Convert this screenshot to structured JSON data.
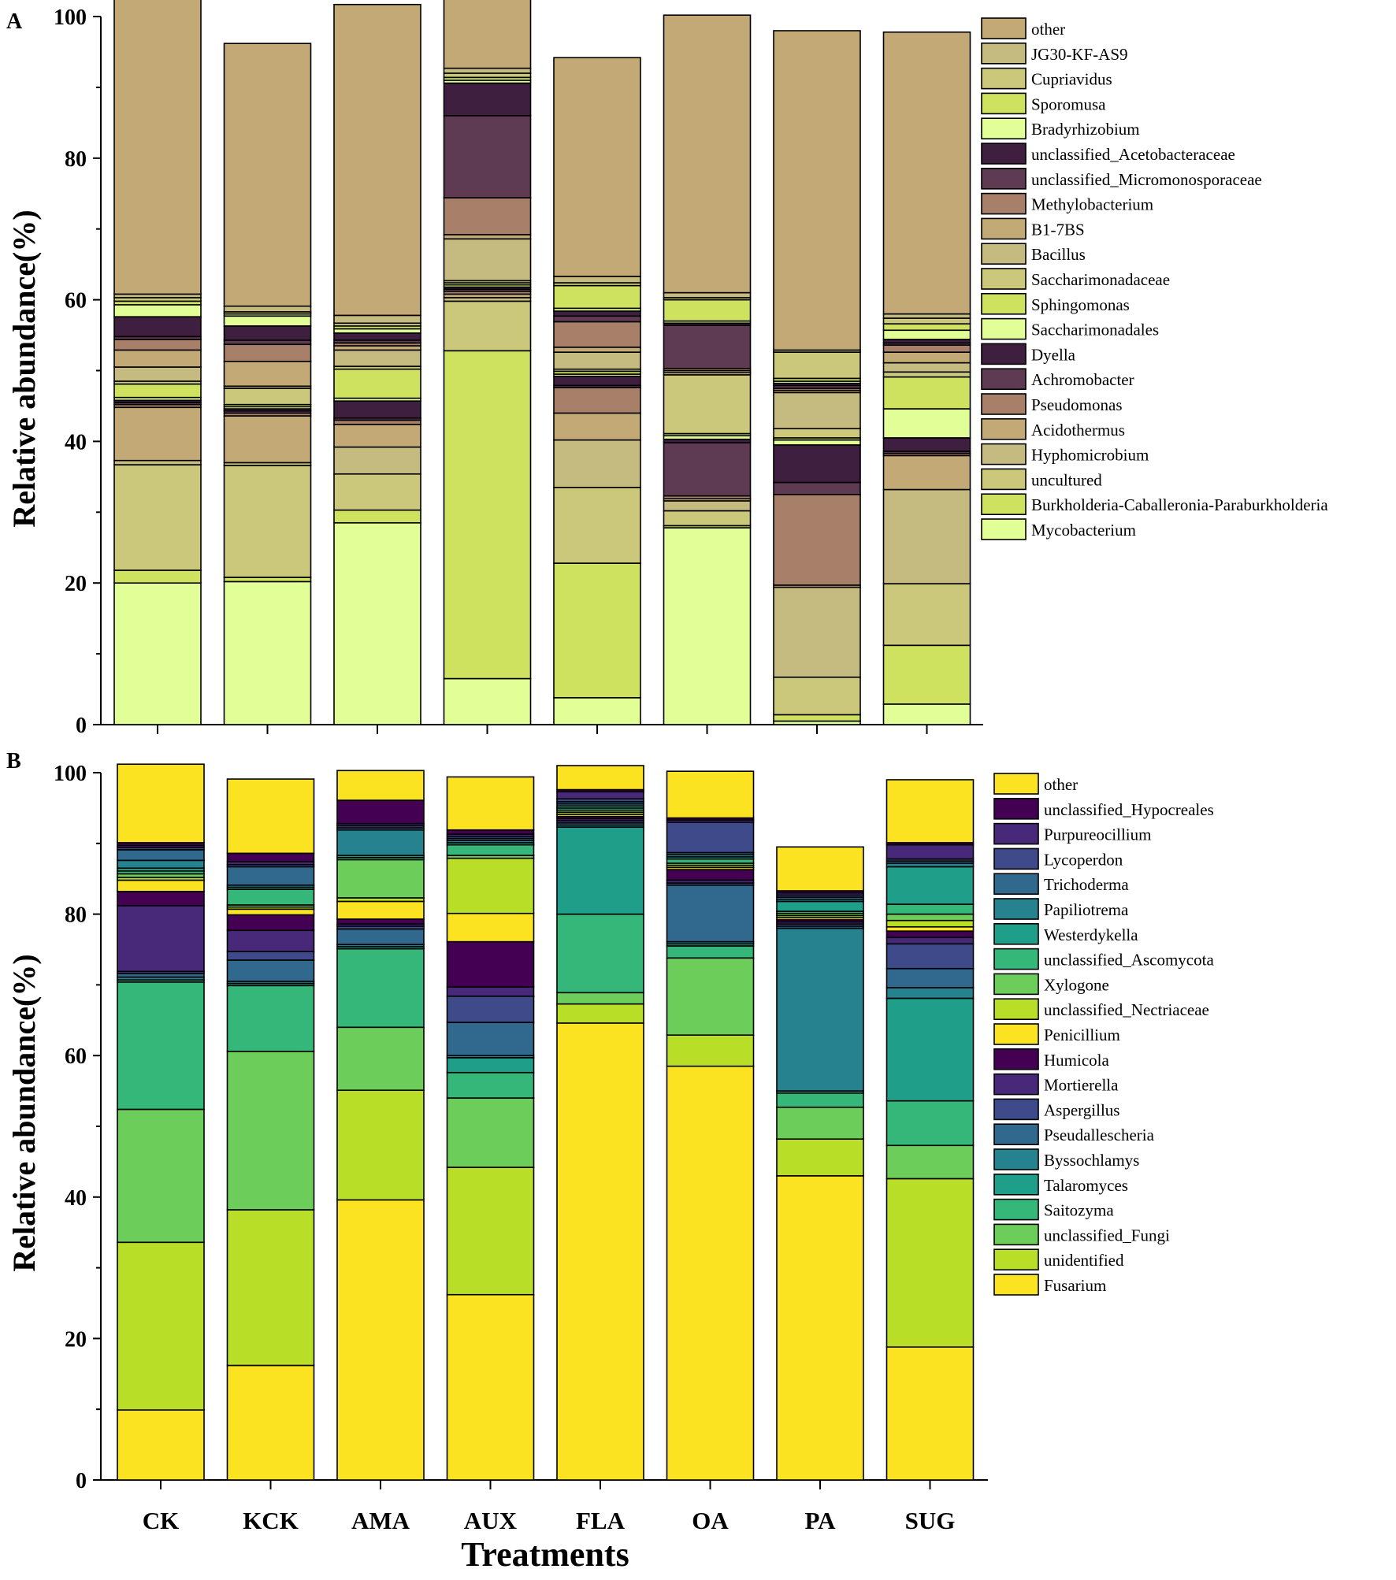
{
  "x_title": "Treatments",
  "chart_data": [
    {
      "panel": "A",
      "type": "bar",
      "stacked": true,
      "ylabel": "Relative abundance(%)",
      "ylim": [
        0,
        100
      ],
      "yticks": [
        0,
        20,
        40,
        60,
        80,
        100
      ],
      "categories": [
        "CK",
        "KCK",
        "AMA",
        "AUX",
        "FLA",
        "OA",
        "PA",
        "SUG"
      ],
      "series": [
        {
          "name": "Mycobacterium",
          "color": "#e1ff96",
          "values": [
            20,
            20.2,
            28.5,
            6.5,
            3.8,
            27.8,
            0.5,
            2.9
          ]
        },
        {
          "name": "Burkholderia-Caballeronia-Paraburkholderia",
          "color": "#cfe25f",
          "values": [
            1.8,
            0.6,
            1.8,
            46.3,
            19,
            0.3,
            0.9,
            8.3
          ]
        },
        {
          "name": "uncultured",
          "color": "#cbc77b",
          "values": [
            14.9,
            15.8,
            5.1,
            7,
            10.7,
            2.1,
            5.3,
            8.7
          ]
        },
        {
          "name": "Hyphomicrobium",
          "color": "#c5bb80",
          "values": [
            0.6,
            0.4,
            3.8,
            0.5,
            6.7,
            1.4,
            12.7,
            13.3
          ]
        },
        {
          "name": "Acidothermus",
          "color": "#c2a975",
          "values": [
            7.5,
            6.6,
            3.2,
            0.5,
            3.8,
            0.3,
            0.3,
            4.8
          ]
        },
        {
          "name": "Pseudomonas",
          "color": "#a8806a",
          "values": [
            0.4,
            0.4,
            0.6,
            0.4,
            3.6,
            0.4,
            12.8,
            0.3
          ]
        },
        {
          "name": "Achromobacter",
          "color": "#5e3b53",
          "values": [
            0.3,
            0.3,
            0.3,
            0.3,
            0.3,
            7.5,
            1.7,
            0.3
          ]
        },
        {
          "name": "Dyella",
          "color": "#3e1f3f",
          "values": [
            0.3,
            0.3,
            2.4,
            0.3,
            1.3,
            0.5,
            5.3,
            1.9
          ]
        },
        {
          "name": "Saccharimonadales",
          "color": "#e1ff96",
          "values": [
            0.4,
            0.3,
            0.4,
            0.3,
            0.3,
            0.5,
            0.7,
            4.1
          ]
        },
        {
          "name": "Sphingomonas",
          "color": "#cfe25f",
          "values": [
            1.9,
            0.3,
            4.1,
            0.3,
            0.4,
            0.3,
            0.3,
            4.5
          ]
        },
        {
          "name": "Saccharimonadaceae",
          "color": "#cbc77b",
          "values": [
            0.4,
            2.3,
            0.4,
            0.3,
            0.3,
            8.3,
            1.3,
            0.7
          ]
        },
        {
          "name": "Bacillus",
          "color": "#c5bb80",
          "values": [
            2,
            0.3,
            2.3,
            5.9,
            2.4,
            0.3,
            5.1,
            1.3
          ]
        },
        {
          "name": "B1-7BS",
          "color": "#c2a975",
          "values": [
            2.4,
            3.5,
            0.6,
            0.6,
            0.7,
            0.3,
            0.3,
            1.5
          ]
        },
        {
          "name": "Methylobacterium",
          "color": "#a8806a",
          "values": [
            1.5,
            2.4,
            0.4,
            5.2,
            3.6,
            0.3,
            0.3,
            1
          ]
        },
        {
          "name": "unclassified_Micromonosporaceae",
          "color": "#5e3b53",
          "values": [
            0.4,
            0.6,
            0.4,
            11.6,
            0.8,
            6.1,
            0.4,
            0.3
          ]
        },
        {
          "name": "unclassified_Acetobacteraceae",
          "color": "#3e1f3f",
          "values": [
            2.8,
            2,
            1,
            4.6,
            0.7,
            0.3,
            0.3,
            0.5
          ]
        },
        {
          "name": "Bradyrhizobium",
          "color": "#e1ff96",
          "values": [
            1.7,
            1.4,
            0.6,
            0.4,
            0.4,
            0.3,
            0.3,
            1.3
          ]
        },
        {
          "name": "Sporomusa",
          "color": "#cfe25f",
          "values": [
            0.5,
            0.3,
            0.4,
            0.4,
            3.2,
            3,
            0.4,
            0.9
          ]
        },
        {
          "name": "Cupriavidus",
          "color": "#cbc77b",
          "values": [
            0.5,
            0.3,
            0.4,
            0.6,
            0.4,
            0.3,
            3.7,
            0.8
          ]
        },
        {
          "name": "JG30-KF-AS9",
          "color": "#c5bb80",
          "values": [
            0.5,
            0.8,
            1.1,
            0.7,
            0.9,
            0.7,
            0.3,
            0.6
          ]
        },
        {
          "name": "other",
          "color": "#c2a975",
          "values": [
            42,
            37.1,
            43.9,
            14.8,
            30.9,
            39.2,
            45.1,
            39.8
          ]
        }
      ]
    },
    {
      "panel": "B",
      "type": "bar",
      "stacked": true,
      "ylabel": "Relative abundance(%)",
      "xlabel": "Treatments",
      "ylim": [
        0,
        100
      ],
      "yticks": [
        0,
        20,
        40,
        60,
        80,
        100
      ],
      "categories": [
        "CK",
        "KCK",
        "AMA",
        "AUX",
        "FLA",
        "OA",
        "PA",
        "SUG"
      ],
      "series": [
        {
          "name": "Fusarium",
          "color": "#fbe321",
          "values": [
            9.9,
            16.2,
            39.6,
            26.2,
            64.6,
            58.5,
            43,
            18.8
          ]
        },
        {
          "name": "unidentified",
          "color": "#b9de28",
          "values": [
            23.7,
            22,
            15.5,
            18,
            2.7,
            4.4,
            5.2,
            23.8
          ]
        },
        {
          "name": "unclassified_Fungi",
          "color": "#6ccd5a",
          "values": [
            18.8,
            22.4,
            8.9,
            9.8,
            1.6,
            10.9,
            4.5,
            4.7
          ]
        },
        {
          "name": "Saitozyma",
          "color": "#35b779",
          "values": [
            18,
            9.3,
            11.1,
            3.6,
            11.1,
            1.7,
            2,
            6.3
          ]
        },
        {
          "name": "Talaromyces",
          "color": "#1f9e89",
          "values": [
            0.3,
            0.3,
            0.3,
            2.1,
            12.3,
            0.3,
            0.3,
            14.5
          ]
        },
        {
          "name": "Byssochlamys",
          "color": "#26828e",
          "values": [
            0.4,
            0.3,
            0.3,
            0.3,
            0.3,
            0.3,
            23,
            1.5
          ]
        },
        {
          "name": "Pseudallescheria",
          "color": "#31688e",
          "values": [
            0.5,
            3,
            2.2,
            4.7,
            0.3,
            8,
            0.3,
            2.7
          ]
        },
        {
          "name": "Aspergillus",
          "color": "#3e4a89",
          "values": [
            0.3,
            1.2,
            0.4,
            3.7,
            0.3,
            0.3,
            0.3,
            3.5
          ]
        },
        {
          "name": "Mortierella",
          "color": "#482878",
          "values": [
            9.3,
            3,
            0.3,
            1.3,
            0.3,
            0.4,
            0.3,
            0.9
          ]
        },
        {
          "name": "Humicola",
          "color": "#440154",
          "values": [
            2,
            2.2,
            0.7,
            6.4,
            0.3,
            1.5,
            0.3,
            0.9
          ]
        },
        {
          "name": "Penicillium",
          "color": "#fbe321",
          "values": [
            1.6,
            0.8,
            2.5,
            4,
            0.3,
            0.3,
            0.3,
            0.6
          ]
        },
        {
          "name": "unclassified_Nectriaceae",
          "color": "#b9de28",
          "values": [
            0.4,
            0.3,
            0.5,
            7.8,
            0.3,
            0.3,
            0.3,
            0.9
          ]
        },
        {
          "name": "Xylogone",
          "color": "#6ccd5a",
          "values": [
            0.5,
            0.3,
            5.4,
            0.4,
            0.3,
            0.3,
            0.3,
            0.9
          ]
        },
        {
          "name": "unclassified_Ascomycota",
          "color": "#35b779",
          "values": [
            0.4,
            2.2,
            0.3,
            1.5,
            0.3,
            0.6,
            0.3,
            1.4
          ]
        },
        {
          "name": "Westerdykella",
          "color": "#1f9e89",
          "values": [
            0.4,
            0.3,
            0.3,
            0.3,
            0.3,
            0.3,
            1.4,
            5.3
          ]
        },
        {
          "name": "Papiliotrema",
          "color": "#26828e",
          "values": [
            1.1,
            0.3,
            3.6,
            0.3,
            0.3,
            0.3,
            0.3,
            0.5
          ]
        },
        {
          "name": "Trichoderma",
          "color": "#31688e",
          "values": [
            1.5,
            2.6,
            0.3,
            0.3,
            0.3,
            0.3,
            0.3,
            0.3
          ]
        },
        {
          "name": "Lycoperdon",
          "color": "#3e4a89",
          "values": [
            0.3,
            0.3,
            0.3,
            0.3,
            0.4,
            4.3,
            0.3,
            0.3
          ]
        },
        {
          "name": "Purpureocillium",
          "color": "#482878",
          "values": [
            0.3,
            0.4,
            0.3,
            0.3,
            1,
            0.3,
            0.3,
            2
          ]
        },
        {
          "name": "unclassified_Hypocreales",
          "color": "#440154",
          "values": [
            0.4,
            1.2,
            3.3,
            0.6,
            0.3,
            0.3,
            0.3,
            0.3
          ]
        },
        {
          "name": "other",
          "color": "#fbe321",
          "values": [
            11.1,
            10.5,
            4.2,
            7.5,
            3.4,
            6.6,
            6.2,
            8.9
          ]
        }
      ]
    }
  ]
}
